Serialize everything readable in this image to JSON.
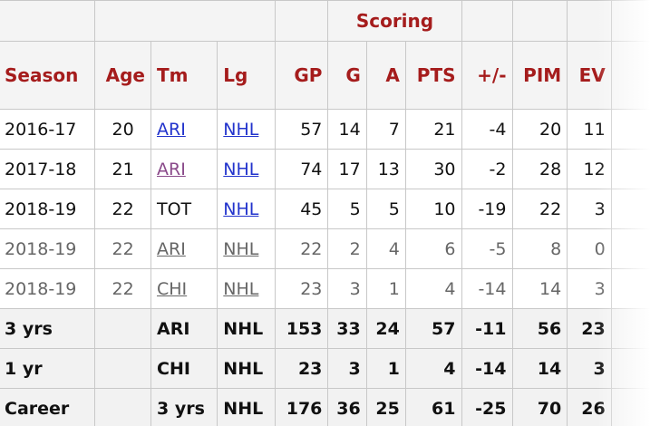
{
  "table": {
    "group_header": "Scoring",
    "columns": [
      "Season",
      "Age",
      "Tm",
      "Lg",
      "GP",
      "G",
      "A",
      "PTS",
      "+/-",
      "PIM",
      "EV"
    ],
    "rows": [
      [
        "2016-17",
        "20",
        "ARI",
        "NHL",
        "57",
        "14",
        "7",
        "21",
        "-4",
        "20",
        "11"
      ],
      [
        "2017-18",
        "21",
        "ARI",
        "NHL",
        "74",
        "17",
        "13",
        "30",
        "-2",
        "28",
        "12"
      ],
      [
        "2018-19",
        "22",
        "TOT",
        "NHL",
        "45",
        "5",
        "5",
        "10",
        "-19",
        "22",
        "3"
      ],
      [
        "2018-19",
        "22",
        "ARI",
        "NHL",
        "22",
        "2",
        "4",
        "6",
        "-5",
        "8",
        "0"
      ],
      [
        "2018-19",
        "22",
        "CHI",
        "NHL",
        "23",
        "3",
        "1",
        "4",
        "-14",
        "14",
        "3"
      ],
      [
        "3 yrs",
        null,
        "ARI",
        "NHL",
        "153",
        "33",
        "24",
        "57",
        "-11",
        "56",
        "23"
      ],
      [
        "1 yr",
        null,
        "CHI",
        "NHL",
        "23",
        "3",
        "1",
        "4",
        "-14",
        "14",
        "3"
      ],
      [
        "Career",
        null,
        "3 yrs",
        "NHL",
        "176",
        "36",
        "25",
        "61",
        "-25",
        "70",
        "26"
      ]
    ]
  }
}
